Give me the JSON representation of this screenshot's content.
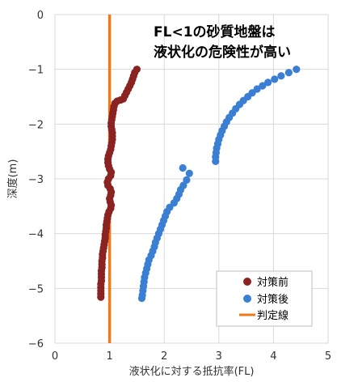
{
  "chart_data": {
    "type": "scatter",
    "title": "",
    "annotation_lines": [
      "FL<1の砂質地盤は",
      "液状化の危険性が高い"
    ],
    "xlabel": "液状化に対する抵抗率(FL)",
    "ylabel": "深度(m)",
    "xlim": [
      0,
      5
    ],
    "ylim": [
      -6,
      0
    ],
    "x_ticks": [
      0,
      1,
      2,
      3,
      4,
      5
    ],
    "y_ticks": [
      0,
      -1,
      -2,
      -3,
      -4,
      -5,
      -6
    ],
    "grid": true,
    "legend_position": "bottom-right",
    "series": [
      {
        "name": "対策前",
        "marker": "circle",
        "color": "#8b2323",
        "points": [
          [
            1.5,
            -1.0
          ],
          [
            1.46,
            -1.06
          ],
          [
            1.44,
            -1.12
          ],
          [
            1.42,
            -1.18
          ],
          [
            1.4,
            -1.24
          ],
          [
            1.37,
            -1.3
          ],
          [
            1.34,
            -1.36
          ],
          [
            1.31,
            -1.42
          ],
          [
            1.28,
            -1.48
          ],
          [
            1.25,
            -1.54
          ],
          [
            1.2,
            -1.56
          ],
          [
            1.14,
            -1.58
          ],
          [
            1.1,
            -1.62
          ],
          [
            1.08,
            -1.68
          ],
          [
            1.07,
            -1.74
          ],
          [
            1.06,
            -1.8
          ],
          [
            1.05,
            -1.86
          ],
          [
            1.04,
            -1.92
          ],
          [
            1.03,
            -1.98
          ],
          [
            1.03,
            -2.04
          ],
          [
            1.04,
            -2.1
          ],
          [
            1.05,
            -2.16
          ],
          [
            1.05,
            -2.22
          ],
          [
            1.05,
            -2.28
          ],
          [
            1.04,
            -2.34
          ],
          [
            1.03,
            -2.4
          ],
          [
            1.02,
            -2.46
          ],
          [
            1.0,
            -2.52
          ],
          [
            0.98,
            -2.58
          ],
          [
            0.97,
            -2.64
          ],
          [
            0.97,
            -2.7
          ],
          [
            0.98,
            -2.76
          ],
          [
            1.0,
            -2.82
          ],
          [
            1.03,
            -2.88
          ],
          [
            1.02,
            -2.94
          ],
          [
            0.98,
            -3.0
          ],
          [
            0.96,
            -3.06
          ],
          [
            0.97,
            -3.12
          ],
          [
            1.01,
            -3.18
          ],
          [
            1.03,
            -3.24
          ],
          [
            1.02,
            -3.3
          ],
          [
            1.0,
            -3.36
          ],
          [
            1.01,
            -3.42
          ],
          [
            1.03,
            -3.48
          ],
          [
            1.02,
            -3.54
          ],
          [
            0.99,
            -3.6
          ],
          [
            0.97,
            -3.66
          ],
          [
            0.96,
            -3.72
          ],
          [
            0.95,
            -3.78
          ],
          [
            0.94,
            -3.84
          ],
          [
            0.94,
            -3.9
          ],
          [
            0.93,
            -3.96
          ],
          [
            0.92,
            -4.02
          ],
          [
            0.92,
            -4.08
          ],
          [
            0.91,
            -4.14
          ],
          [
            0.9,
            -4.2
          ],
          [
            0.89,
            -4.26
          ],
          [
            0.88,
            -4.32
          ],
          [
            0.87,
            -4.38
          ],
          [
            0.87,
            -4.44
          ],
          [
            0.86,
            -4.5
          ],
          [
            0.86,
            -4.56
          ],
          [
            0.86,
            -4.62
          ],
          [
            0.85,
            -4.68
          ],
          [
            0.85,
            -4.74
          ],
          [
            0.85,
            -4.8
          ],
          [
            0.85,
            -4.86
          ],
          [
            0.84,
            -4.92
          ],
          [
            0.84,
            -4.98
          ],
          [
            0.84,
            -5.04
          ],
          [
            0.84,
            -5.1
          ],
          [
            0.84,
            -5.16
          ]
        ]
      },
      {
        "name": "対策後",
        "marker": "circle",
        "color": "#3b7fd4",
        "points": [
          [
            4.42,
            -1.0
          ],
          [
            4.28,
            -1.06
          ],
          [
            4.14,
            -1.12
          ],
          [
            4.02,
            -1.18
          ],
          [
            3.9,
            -1.24
          ],
          [
            3.8,
            -1.3
          ],
          [
            3.7,
            -1.36
          ],
          [
            3.61,
            -1.43
          ],
          [
            3.53,
            -1.5
          ],
          [
            3.45,
            -1.57
          ],
          [
            3.38,
            -1.64
          ],
          [
            3.31,
            -1.72
          ],
          [
            3.25,
            -1.8
          ],
          [
            3.19,
            -1.88
          ],
          [
            3.14,
            -1.96
          ],
          [
            3.1,
            -2.04
          ],
          [
            3.06,
            -2.12
          ],
          [
            3.03,
            -2.2
          ],
          [
            3.0,
            -2.28
          ],
          [
            2.98,
            -2.36
          ],
          [
            2.96,
            -2.44
          ],
          [
            2.95,
            -2.52
          ],
          [
            2.94,
            -2.6
          ],
          [
            2.94,
            -2.68
          ],
          [
            2.34,
            -2.8
          ],
          [
            2.46,
            -2.9
          ],
          [
            2.41,
            -3.02
          ],
          [
            2.35,
            -3.12
          ],
          [
            2.3,
            -3.2
          ],
          [
            2.27,
            -3.28
          ],
          [
            2.23,
            -3.36
          ],
          [
            2.18,
            -3.44
          ],
          [
            2.1,
            -3.52
          ],
          [
            2.05,
            -3.6
          ],
          [
            2.02,
            -3.68
          ],
          [
            1.99,
            -3.76
          ],
          [
            1.96,
            -3.84
          ],
          [
            1.93,
            -3.92
          ],
          [
            1.9,
            -4.0
          ],
          [
            1.87,
            -4.08
          ],
          [
            1.84,
            -4.16
          ],
          [
            1.82,
            -4.24
          ],
          [
            1.79,
            -4.32
          ],
          [
            1.76,
            -4.4
          ],
          [
            1.72,
            -4.48
          ],
          [
            1.7,
            -4.56
          ],
          [
            1.68,
            -4.64
          ],
          [
            1.66,
            -4.72
          ],
          [
            1.64,
            -4.8
          ],
          [
            1.63,
            -4.88
          ],
          [
            1.62,
            -4.96
          ],
          [
            1.61,
            -5.04
          ],
          [
            1.6,
            -5.12
          ],
          [
            1.59,
            -5.18
          ]
        ]
      },
      {
        "name": "判定線",
        "marker": "line",
        "color": "#f07a1a",
        "x": 1.0
      }
    ]
  }
}
